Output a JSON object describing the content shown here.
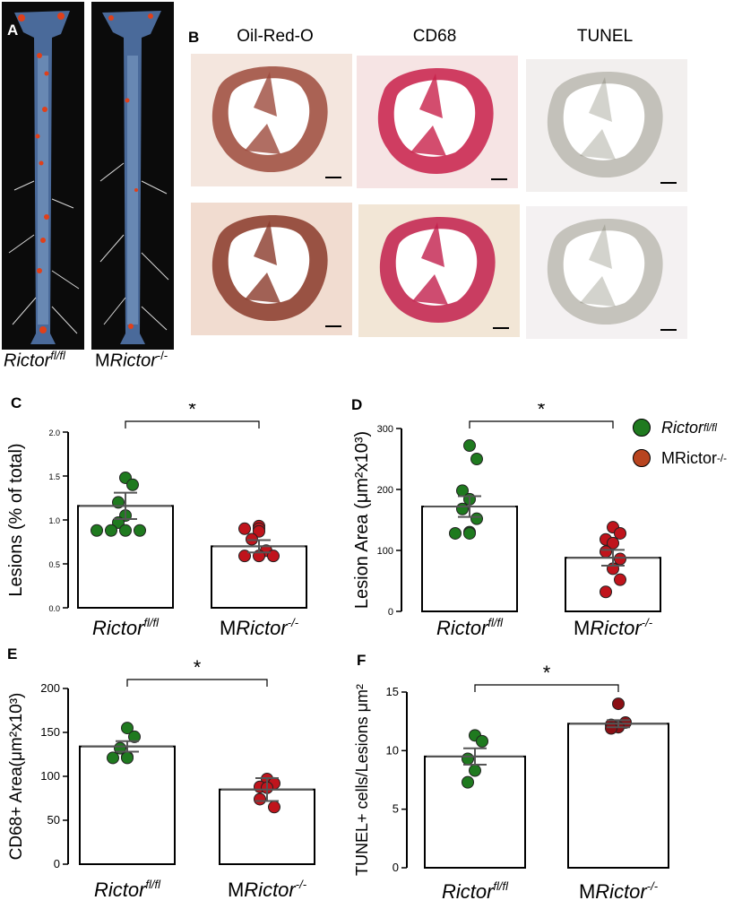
{
  "panels": {
    "A": {
      "letter": "A",
      "left_label_base": "Rictor",
      "left_label_sup": "fl/fl",
      "right_label_prefix": "M",
      "right_label_italic": "Rictor",
      "right_label_sup": "-/-"
    },
    "B": {
      "letter": "B",
      "stains": [
        "Oil-Red-O",
        "CD68",
        "TUNEL"
      ]
    }
  },
  "legend": {
    "items": [
      {
        "italic": "Rictor",
        "sup": "fl/fl",
        "plain": "",
        "color": "#1f7a1f"
      },
      {
        "italic": "",
        "sup": "-/-",
        "plain": "MRictor",
        "color": "#b8441f"
      }
    ]
  },
  "colors": {
    "green": "#1f7a1f",
    "red": "#c0141c",
    "bar": "#ffffff"
  },
  "chart_data": [
    {
      "id": "C",
      "letter": "C",
      "type": "bar",
      "categories": [
        {
          "prefix": "",
          "italic": "Rictor",
          "sup": "fl/fl"
        },
        {
          "prefix": "M",
          "italic": "Rictor",
          "sup": "-/-"
        }
      ],
      "ylabel": "Lesions (% of total)",
      "ylim": [
        0,
        2.0
      ],
      "yticks": [
        "0.0",
        "0.5",
        "1.0",
        "1.5",
        "2.0"
      ],
      "ytick_values": [
        0,
        0.5,
        1.0,
        1.5,
        2.0
      ],
      "values": [
        1.16,
        0.7
      ],
      "errors": [
        0.15,
        0.07
      ],
      "points": [
        [
          1.48,
          1.4,
          1.2,
          1.05,
          0.97,
          0.88,
          0.88,
          0.88,
          0.88
        ],
        [
          0.93,
          0.9,
          0.9,
          0.87,
          0.78,
          0.65,
          0.59,
          0.59,
          0.59
        ]
      ],
      "point_colors": [
        "#1f7a1f",
        "#c0141c"
      ],
      "significance": "*"
    },
    {
      "id": "D",
      "letter": "D",
      "type": "bar",
      "categories": [
        {
          "prefix": "",
          "italic": "Rictor",
          "sup": "fl/fl"
        },
        {
          "prefix": "M",
          "italic": "Rictor",
          "sup": "-/-"
        }
      ],
      "ylabel": "Lesion Area (μm²x10³)",
      "ylim": [
        0,
        300
      ],
      "yticks": [
        "0",
        "100",
        "200",
        "300"
      ],
      "ytick_values": [
        0,
        100,
        200,
        300
      ],
      "values": [
        172,
        88
      ],
      "errors": [
        17,
        13
      ],
      "points": [
        [
          272,
          250,
          198,
          184,
          168,
          152,
          130,
          128,
          128
        ],
        [
          138,
          128,
          118,
          112,
          98,
          86,
          70,
          52,
          32
        ]
      ],
      "point_colors": [
        "#1f7a1f",
        "#c0141c"
      ],
      "significance": "*"
    },
    {
      "id": "E",
      "letter": "E",
      "type": "bar",
      "categories": [
        {
          "prefix": "",
          "italic": "Rictor",
          "sup": "fl/fl"
        },
        {
          "prefix": "M",
          "italic": "Rictor",
          "sup": "-/-"
        }
      ],
      "ylabel": "CD68+ Area(μm²x10³)",
      "ylim": [
        0,
        200
      ],
      "yticks": [
        "0",
        "50",
        "100",
        "150",
        "200"
      ],
      "ytick_values": [
        0,
        50,
        100,
        150,
        200
      ],
      "values": [
        134,
        85
      ],
      "errors": [
        6,
        13
      ],
      "points": [
        [
          155,
          145,
          132,
          122,
          121,
          121
        ],
        [
          97,
          92,
          88,
          87,
          74,
          65
        ]
      ],
      "point_colors": [
        "#1f7a1f",
        "#c0141c"
      ],
      "significance": "*"
    },
    {
      "id": "F",
      "letter": "F",
      "type": "bar",
      "categories": [
        {
          "prefix": "",
          "italic": "Rictor",
          "sup": "fl/fl"
        },
        {
          "prefix": "M",
          "italic": "Rictor",
          "sup": "-/-"
        }
      ],
      "ylabel": "TUNEL+ cells/Lesions μm²",
      "ylim": [
        0,
        15
      ],
      "yticks": [
        "0",
        "5",
        "10",
        "15"
      ],
      "ytick_values": [
        0,
        5,
        10,
        15
      ],
      "values": [
        9.5,
        12.3
      ],
      "errors": [
        0.7,
        0.3
      ],
      "points": [
        [
          11.3,
          10.8,
          9.3,
          8.3,
          7.3
        ],
        [
          14.0,
          12.4,
          12.2,
          12.0,
          11.9
        ]
      ],
      "point_colors": [
        "#1f7a1f",
        "#8b0f14"
      ],
      "significance": "*"
    }
  ]
}
